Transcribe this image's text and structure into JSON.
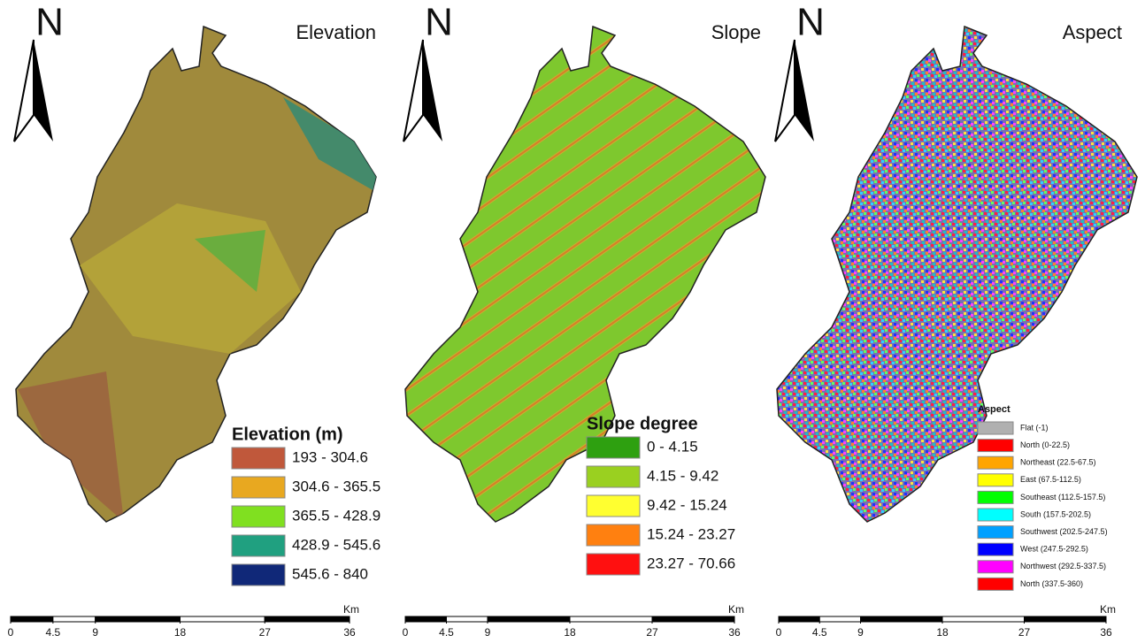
{
  "panels": [
    {
      "title": "Elevation",
      "north": "N",
      "legend": {
        "title": "Elevation (m)",
        "items": [
          {
            "label": "193 - 304.6",
            "color": "#c0583b"
          },
          {
            "label": "304.6 - 365.5",
            "color": "#e8a820"
          },
          {
            "label": "365.5 - 428.9",
            "color": "#80e020"
          },
          {
            "label": "428.9 - 545.6",
            "color": "#20a080"
          },
          {
            "label": "545.6 - 840",
            "color": "#102878"
          }
        ]
      },
      "scale": {
        "ticks": [
          0,
          4.5,
          9,
          18,
          27,
          36
        ],
        "unit": "Km"
      }
    },
    {
      "title": "Slope",
      "north": "N",
      "legend": {
        "title": "Slope degree",
        "items": [
          {
            "label": "0 - 4.15",
            "color": "#2ea010"
          },
          {
            "label": "4.15 - 9.42",
            "color": "#9ad020"
          },
          {
            "label": "9.42 - 15.24",
            "color": "#ffff30"
          },
          {
            "label": "15.24 - 23.27",
            "color": "#ff8010"
          },
          {
            "label": "23.27 - 70.66",
            "color": "#ff1010"
          }
        ]
      },
      "scale": {
        "ticks": [
          0,
          4.5,
          9,
          18,
          27,
          36
        ],
        "unit": "Km"
      }
    },
    {
      "title": "Aspect",
      "north": "N",
      "legend": {
        "title": "Aspect",
        "items": [
          {
            "label": "Flat (-1)",
            "color": "#b0b0b0"
          },
          {
            "label": "North (0-22.5)",
            "color": "#ff0000"
          },
          {
            "label": "Northeast (22.5-67.5)",
            "color": "#ffa500"
          },
          {
            "label": "East (67.5-112.5)",
            "color": "#ffff00"
          },
          {
            "label": "Southeast (112.5-157.5)",
            "color": "#00ff00"
          },
          {
            "label": "South (157.5-202.5)",
            "color": "#00ffff"
          },
          {
            "label": "Southwest (202.5-247.5)",
            "color": "#00a0ff"
          },
          {
            "label": "West (247.5-292.5)",
            "color": "#0000ff"
          },
          {
            "label": "Northwest (292.5-337.5)",
            "color": "#ff00ff"
          },
          {
            "label": "North (337.5-360)",
            "color": "#ff0000"
          }
        ]
      },
      "scale": {
        "ticks": [
          0,
          4.5,
          9,
          18,
          27,
          36
        ],
        "unit": "Km"
      }
    }
  ]
}
